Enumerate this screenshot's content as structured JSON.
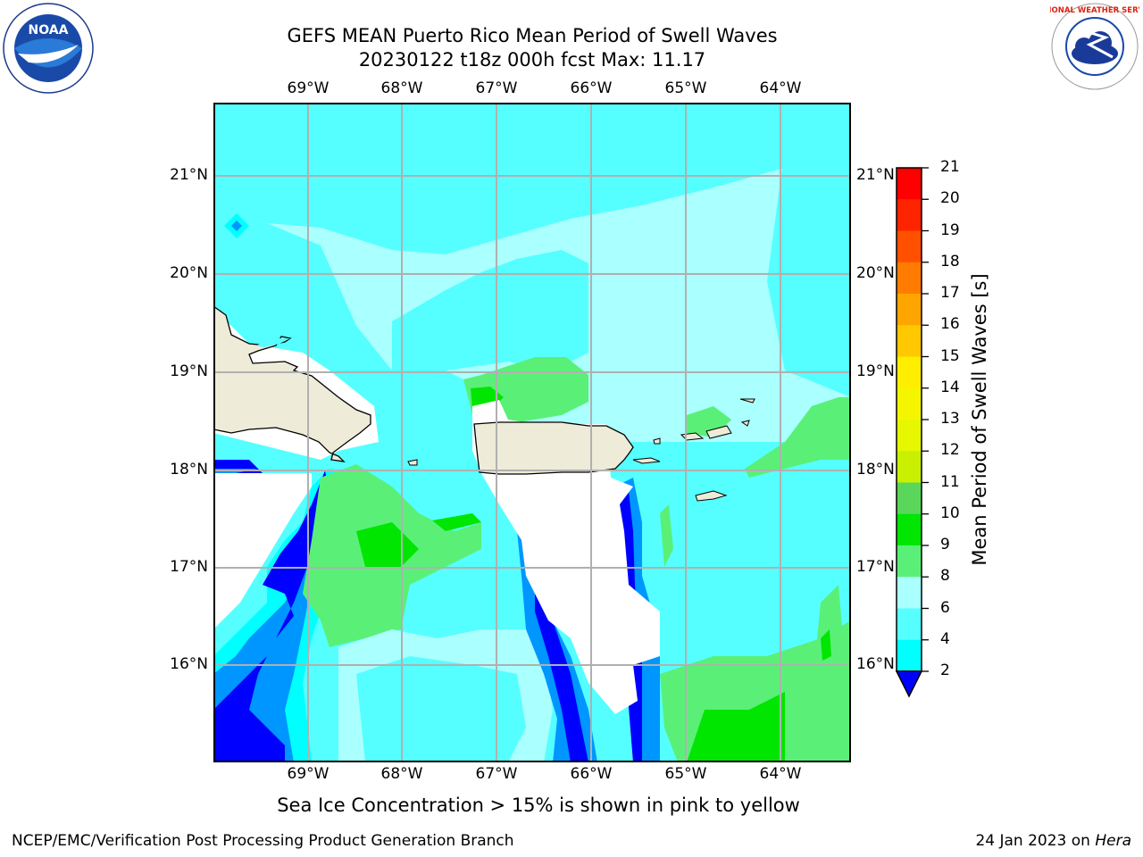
{
  "title": {
    "line1": "GEFS MEAN Puerto Rico Mean Period of Swell Waves",
    "line2": "20230122 t18z 000h fcst   Max: 11.17"
  },
  "axes": {
    "lon_labels": [
      "69°W",
      "68°W",
      "67°W",
      "66°W",
      "65°W",
      "64°W"
    ],
    "lat_labels": [
      "21°N",
      "20°N",
      "19°N",
      "18°N",
      "17°N",
      "16°N"
    ]
  },
  "colorbar": {
    "label": "Mean Period of Swell Waves [s]",
    "ticks": [
      "21",
      "20",
      "19",
      "18",
      "17",
      "16",
      "15",
      "14",
      "13",
      "12",
      "11",
      "10",
      "9",
      "8",
      "6",
      "4",
      "2"
    ],
    "colors": [
      "#ff0000",
      "#ff2400",
      "#ff5000",
      "#ff7c00",
      "#ffa500",
      "#ffc800",
      "#ffee00",
      "#f5f500",
      "#e6f700",
      "#c8f000",
      "#5ad75a",
      "#00e600",
      "#5af078",
      "#aaffff",
      "#55ffff",
      "#00ffff",
      "#0096ff",
      "#0000ff"
    ]
  },
  "subnote": "Sea Ice Concentration > 15% is shown in pink to yellow",
  "footer": {
    "left": "NCEP/EMC/Verification Post Processing Product Generation Branch",
    "right_date": "24 Jan 2023 on ",
    "right_host": "Hera"
  },
  "logos": {
    "noaa_text": "NOAA",
    "nws_text": "NATIONAL WEATHER SERVICE"
  }
}
